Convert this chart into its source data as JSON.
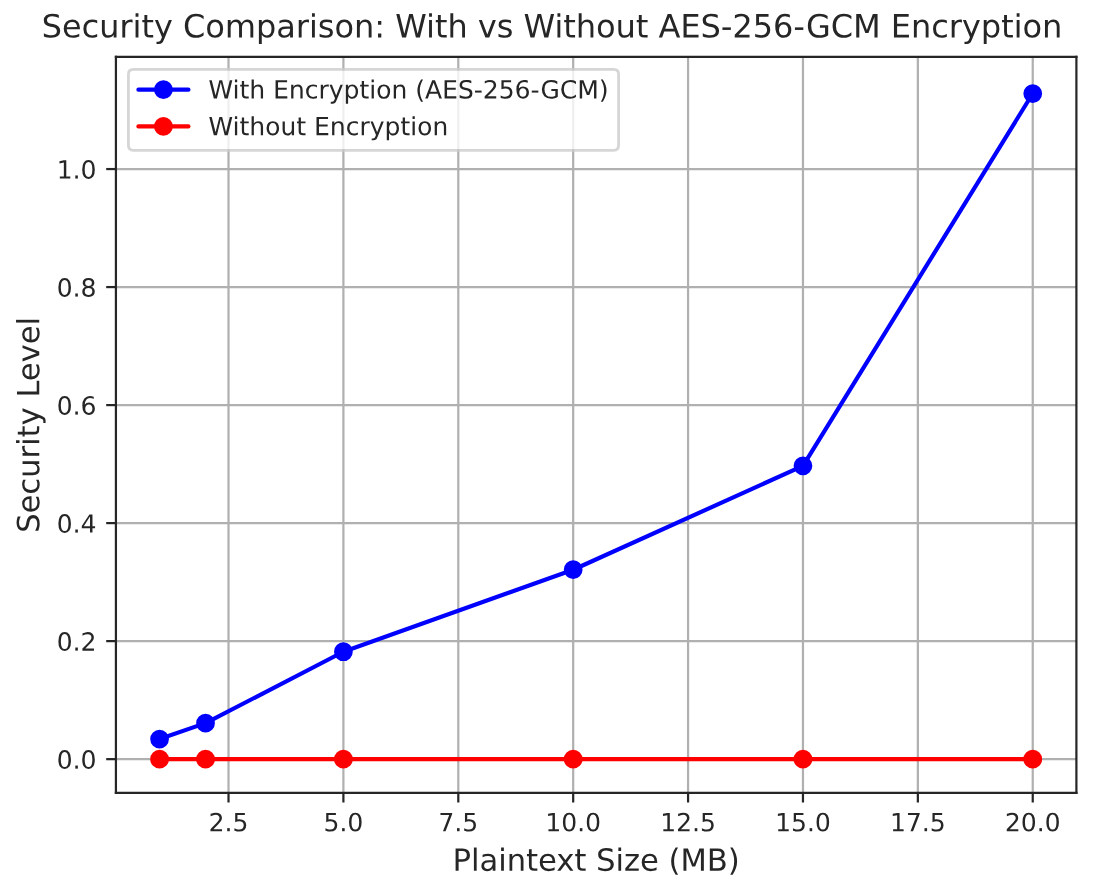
{
  "chart_data": {
    "type": "line",
    "title": "Security Comparison: With vs Without AES-256-GCM Encryption",
    "xlabel": "Plaintext Size (MB)",
    "ylabel": "Security Level",
    "x": [
      1,
      2,
      5,
      10,
      15,
      20
    ],
    "series": [
      {
        "name": "With Encryption (AES-256-GCM)",
        "color": "#0000ff",
        "values": [
          0.034,
          0.061,
          0.182,
          0.321,
          0.497,
          1.128
        ]
      },
      {
        "name": "Without Encryption",
        "color": "#ff0000",
        "values": [
          0,
          0,
          0,
          0,
          0,
          0
        ]
      }
    ],
    "xlim": [
      0.05,
      20.95
    ],
    "ylim": [
      -0.057,
      1.19
    ],
    "xticks": [
      {
        "value": 2.5,
        "label": "2.5"
      },
      {
        "value": 5,
        "label": "5.0"
      },
      {
        "value": 7.5,
        "label": "7.5"
      },
      {
        "value": 10,
        "label": "10.0"
      },
      {
        "value": 12.5,
        "label": "12.5"
      },
      {
        "value": 15,
        "label": "15.0"
      },
      {
        "value": 17.5,
        "label": "17.5"
      },
      {
        "value": 20,
        "label": "20.0"
      }
    ],
    "yticks": [
      {
        "value": 0,
        "label": "0.0"
      },
      {
        "value": 0.2,
        "label": "0.2"
      },
      {
        "value": 0.4,
        "label": "0.4"
      },
      {
        "value": 0.6,
        "label": "0.6"
      },
      {
        "value": 0.8,
        "label": "0.8"
      },
      {
        "value": 1.0,
        "label": "1.0"
      }
    ],
    "grid": true,
    "legend": "top left",
    "marker": "circle",
    "line_style": "solid"
  }
}
